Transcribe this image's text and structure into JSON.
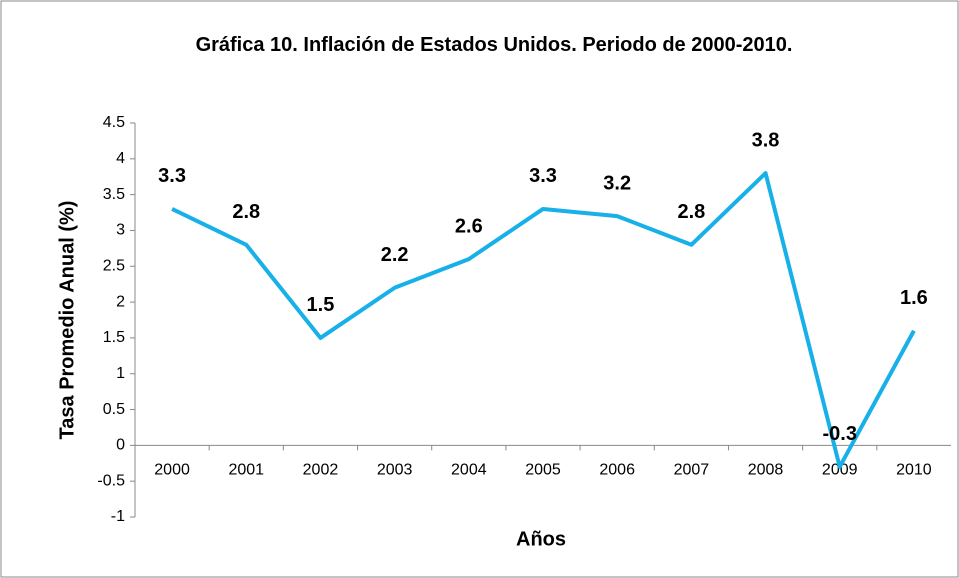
{
  "chart_data": {
    "type": "line",
    "title": "Gráfica 10. Inflación de Estados Unidos. Periodo de 2000-2010.",
    "xlabel": "Años",
    "ylabel": "Tasa Promedio Anual (%)",
    "categories": [
      "2000",
      "2001",
      "2002",
      "2003",
      "2004",
      "2005",
      "2006",
      "2007",
      "2008",
      "2009",
      "2010"
    ],
    "series": [
      {
        "name": "Inflación",
        "color": "#17b0e8",
        "values": [
          3.3,
          2.8,
          1.5,
          2.2,
          2.6,
          3.3,
          3.2,
          2.8,
          3.8,
          -0.3,
          1.6
        ]
      }
    ],
    "ylim": [
      -1,
      4.5
    ],
    "yticks": [
      -1,
      -0.5,
      0,
      0.5,
      1,
      1.5,
      2,
      2.5,
      3,
      3.5,
      4,
      4.5
    ],
    "grid": false,
    "legend": false
  }
}
